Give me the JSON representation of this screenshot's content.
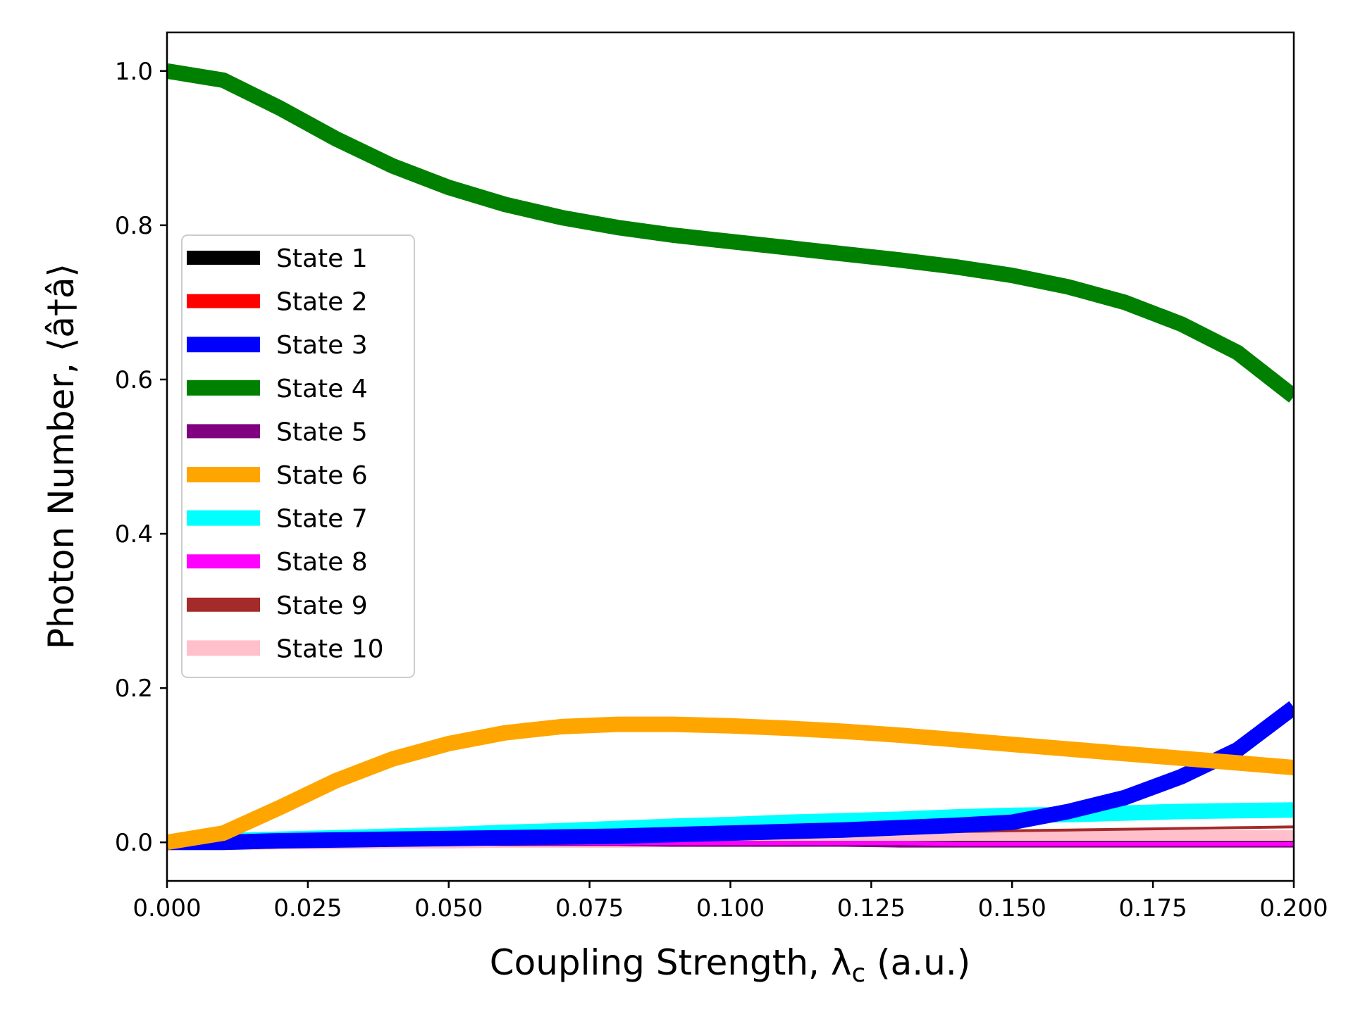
{
  "chart_data": {
    "type": "line",
    "xlabel": "Coupling Strength, λ",
    "xlabel_sub": "c",
    "xlabel_suffix": " (a.u.)",
    "ylabel": "Photon Number, ⟨â†â⟩",
    "xlim": [
      0.0,
      0.2
    ],
    "ylim": [
      -0.05,
      1.05
    ],
    "xticks": [
      0.0,
      0.025,
      0.05,
      0.075,
      0.1,
      0.125,
      0.15,
      0.175,
      0.2
    ],
    "xtick_labels": [
      "0.000",
      "0.025",
      "0.050",
      "0.075",
      "0.100",
      "0.125",
      "0.150",
      "0.175",
      "0.200"
    ],
    "yticks": [
      0.0,
      0.2,
      0.4,
      0.6,
      0.8,
      1.0
    ],
    "ytick_labels": [
      "0.0",
      "0.2",
      "0.4",
      "0.6",
      "0.8",
      "1.0"
    ],
    "grid": false,
    "legend_position": "center-left",
    "x": [
      0.0,
      0.01,
      0.02,
      0.03,
      0.04,
      0.05,
      0.06,
      0.07,
      0.08,
      0.09,
      0.1,
      0.11,
      0.12,
      0.13,
      0.14,
      0.15,
      0.16,
      0.17,
      0.18,
      0.19,
      0.2
    ],
    "series": [
      {
        "name": "State 1",
        "color": "#000000",
        "width": 4,
        "values": [
          0,
          0,
          0,
          0,
          0,
          0,
          0,
          0,
          0,
          0,
          0,
          0,
          0,
          0,
          0,
          0,
          0,
          0,
          0,
          0,
          0
        ]
      },
      {
        "name": "State 2",
        "color": "#ff0000",
        "width": 4,
        "values": [
          0.0,
          0.0,
          0.0,
          -0.001,
          -0.001,
          -0.001,
          -0.002,
          -0.002,
          -0.002,
          -0.003,
          -0.003,
          -0.003,
          -0.003,
          -0.003,
          -0.004,
          -0.004,
          -0.004,
          -0.004,
          -0.004,
          -0.004,
          -0.004
        ]
      },
      {
        "name": "State 3",
        "color": "#0000ff",
        "width": 22,
        "values": [
          0.0,
          0.0,
          0.002,
          0.003,
          0.004,
          0.005,
          0.006,
          0.007,
          0.008,
          0.01,
          0.012,
          0.014,
          0.016,
          0.019,
          0.022,
          0.026,
          0.04,
          0.058,
          0.085,
          0.12,
          0.175
        ]
      },
      {
        "name": "State 4",
        "color": "#008000",
        "width": 22,
        "values": [
          1.0,
          0.988,
          0.952,
          0.912,
          0.877,
          0.849,
          0.827,
          0.81,
          0.797,
          0.787,
          0.779,
          0.771,
          0.763,
          0.755,
          0.746,
          0.735,
          0.72,
          0.7,
          0.672,
          0.635,
          0.578
        ]
      },
      {
        "name": "State 5",
        "color": "#800080",
        "width": 6,
        "values": [
          0.0,
          0.0,
          0.0,
          -0.001,
          -0.001,
          -0.001,
          -0.002,
          -0.002,
          -0.002,
          -0.003,
          -0.003,
          -0.003,
          -0.003,
          -0.004,
          -0.004,
          -0.004,
          -0.004,
          -0.004,
          -0.004,
          -0.004,
          -0.004
        ]
      },
      {
        "name": "State 6",
        "color": "#ffa500",
        "width": 22,
        "values": [
          0.0,
          0.012,
          0.045,
          0.08,
          0.108,
          0.128,
          0.142,
          0.15,
          0.153,
          0.153,
          0.151,
          0.148,
          0.144,
          0.139,
          0.133,
          0.127,
          0.121,
          0.115,
          0.109,
          0.103,
          0.097
        ]
      },
      {
        "name": "State 7",
        "color": "#00ffff",
        "width": 22,
        "values": [
          0.0,
          0.002,
          0.004,
          0.006,
          0.008,
          0.01,
          0.013,
          0.015,
          0.018,
          0.021,
          0.023,
          0.026,
          0.028,
          0.03,
          0.033,
          0.035,
          0.036,
          0.038,
          0.04,
          0.041,
          0.042
        ]
      },
      {
        "name": "State 8",
        "color": "#ff00ff",
        "width": 6,
        "values": [
          0.0,
          0.0,
          0.0,
          0.0,
          -0.001,
          -0.001,
          -0.001,
          -0.001,
          -0.001,
          -0.001,
          -0.001,
          -0.001,
          -0.001,
          -0.001,
          -0.002,
          -0.002,
          -0.002,
          -0.002,
          -0.002,
          -0.002,
          -0.002
        ]
      },
      {
        "name": "State 9",
        "color": "#a52a2a",
        "width": 4,
        "values": [
          0.0,
          0.001,
          0.002,
          0.003,
          0.004,
          0.005,
          0.006,
          0.007,
          0.008,
          0.009,
          0.01,
          0.011,
          0.012,
          0.013,
          0.014,
          0.015,
          0.016,
          0.017,
          0.018,
          0.019,
          0.02
        ]
      },
      {
        "name": "State 10",
        "color": "#ffc0cb",
        "width": 22,
        "values": [
          0.0,
          0.0,
          0.001,
          0.001,
          0.002,
          0.002,
          0.003,
          0.003,
          0.003,
          0.004,
          0.004,
          0.004,
          0.005,
          0.005,
          0.005,
          0.005,
          0.006,
          0.006,
          0.006,
          0.006,
          0.006
        ]
      }
    ]
  }
}
